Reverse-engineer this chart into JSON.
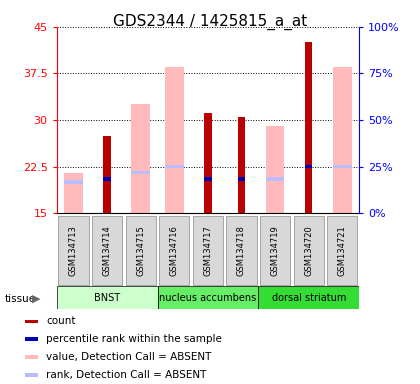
{
  "title": "GDS2344 / 1425815_a_at",
  "samples": [
    "GSM134713",
    "GSM134714",
    "GSM134715",
    "GSM134716",
    "GSM134717",
    "GSM134718",
    "GSM134719",
    "GSM134720",
    "GSM134721"
  ],
  "tissues": [
    {
      "name": "BNST",
      "start": 0,
      "end": 3,
      "color": "#ccffcc"
    },
    {
      "name": "nucleus accumbens",
      "start": 3,
      "end": 6,
      "color": "#66ee66"
    },
    {
      "name": "dorsal striatum",
      "start": 6,
      "end": 9,
      "color": "#33dd33"
    }
  ],
  "red_bars_top": [
    null,
    27.5,
    null,
    null,
    31.2,
    30.5,
    null,
    42.5,
    null
  ],
  "blue_bar_pos": [
    null,
    20.5,
    null,
    null,
    20.5,
    20.5,
    null,
    22.5,
    null
  ],
  "pink_bars_top": [
    21.5,
    null,
    32.5,
    38.5,
    null,
    null,
    29.0,
    null,
    38.5
  ],
  "light_blue_pos": [
    20.0,
    null,
    21.5,
    22.5,
    null,
    null,
    20.5,
    null,
    22.5
  ],
  "ymin": 15,
  "ymax": 45,
  "yticks_left": [
    15,
    22.5,
    30,
    37.5,
    45
  ],
  "yticks_right": [
    0,
    25,
    50,
    75,
    100
  ],
  "red_color": "#bb0000",
  "blue_color": "#0000bb",
  "pink_color": "#ffbbbb",
  "light_blue_color": "#bbbbff",
  "gray_label_color": "#cccccc",
  "bg_color": "#ffffff",
  "title_fontsize": 11,
  "legend_labels": [
    "count",
    "percentile rank within the sample",
    "value, Detection Call = ABSENT",
    "rank, Detection Call = ABSENT"
  ]
}
